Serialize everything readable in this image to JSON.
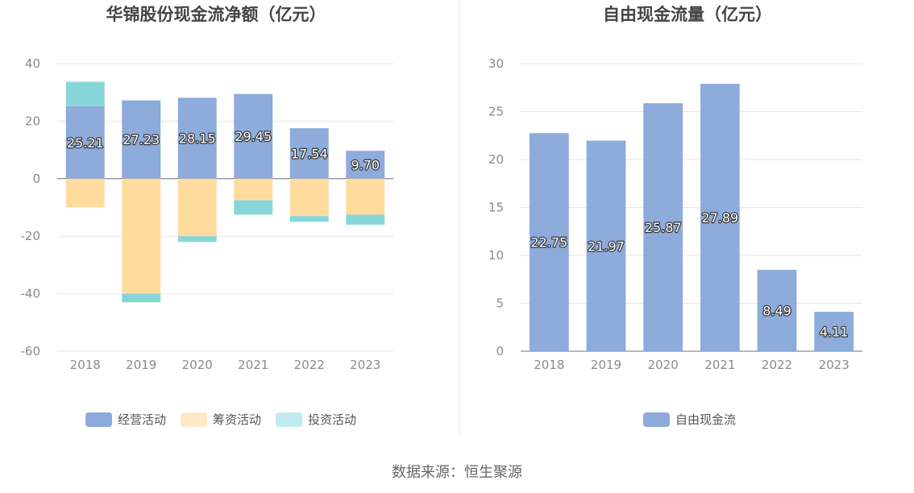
{
  "colors": {
    "operating": "#8dabdb",
    "financing": "#ffdb9e",
    "investing": "#88d5d9",
    "fcf": "#8dabdb",
    "legend_financing": "#ffe8c6",
    "legend_investing": "#c0ebee"
  },
  "source": "数据来源：恒生聚源",
  "chart_data": [
    {
      "type": "bar",
      "stacked": true,
      "title": "华锦股份现金流净额（亿元）",
      "categories": [
        "2018",
        "2019",
        "2020",
        "2021",
        "2022",
        "2023"
      ],
      "ylim": [
        -60,
        40
      ],
      "yticks": [
        40,
        20,
        0,
        -20,
        -40,
        -60
      ],
      "grid": true,
      "legend_position": "bottom",
      "series": [
        {
          "name": "经营活动",
          "values": [
            25.21,
            27.23,
            28.15,
            29.45,
            17.54,
            9.7
          ],
          "labels": [
            "25.21",
            "27.23",
            "28.15",
            "29.45",
            "17.54",
            "9.70"
          ]
        },
        {
          "name": "筹资活动",
          "values": [
            -10,
            -40,
            -20,
            -7.5,
            -13,
            -12.5
          ]
        },
        {
          "name": "投资活动",
          "values": [
            8.5,
            -3,
            -2,
            -5,
            -2,
            -3.5
          ]
        }
      ]
    },
    {
      "type": "bar",
      "title": "自由现金流量（亿元）",
      "categories": [
        "2018",
        "2019",
        "2020",
        "2021",
        "2022",
        "2023"
      ],
      "ylim": [
        0,
        30
      ],
      "yticks": [
        30,
        25,
        20,
        15,
        10,
        5,
        0
      ],
      "grid": true,
      "legend_position": "bottom",
      "series": [
        {
          "name": "自由现金流",
          "values": [
            22.75,
            21.97,
            25.87,
            27.89,
            8.49,
            4.11
          ],
          "labels": [
            "22.75",
            "21.97",
            "25.87",
            "27.89",
            "8.49",
            "4.11"
          ]
        }
      ]
    }
  ]
}
